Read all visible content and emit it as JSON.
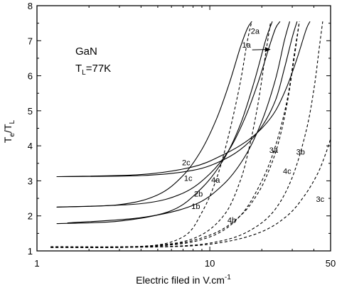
{
  "chart_data": {
    "type": "line",
    "xscale": "log",
    "xlim": [
      1,
      50
    ],
    "ylim": [
      1,
      8
    ],
    "xticks": [
      {
        "v": 1,
        "label": "1"
      },
      {
        "v": 10,
        "label": "10"
      },
      {
        "v": 50,
        "label": "50"
      }
    ],
    "xminor": [
      2,
      3,
      4,
      5,
      6,
      7,
      8,
      9,
      20,
      30,
      40
    ],
    "yticks": [
      1,
      2,
      3,
      4,
      5,
      6,
      7,
      8
    ],
    "xlabel": "Electric filed in V.cm",
    "xlabel_sup": "-1",
    "ylabel": "T",
    "ylabel_sub1": "e",
    "ylabel_mid": "/T",
    "ylabel_sub2": "L",
    "annotation": {
      "line1": "GaN",
      "line2_main": "T",
      "line2_sub": "L",
      "line2_rest": "=77K"
    },
    "series": [
      {
        "label": "1a",
        "style": "solid",
        "x": [
          1.3,
          3,
          6,
          9,
          12,
          15,
          18,
          21,
          23
        ],
        "y": [
          1.78,
          1.85,
          2.15,
          2.8,
          3.6,
          4.6,
          5.8,
          7.0,
          7.55
        ]
      },
      {
        "label": "1b",
        "style": "solid",
        "x": [
          1.5,
          4,
          8,
          12,
          16,
          20,
          24,
          27,
          29
        ],
        "y": [
          1.8,
          1.95,
          2.3,
          2.9,
          3.7,
          4.7,
          5.9,
          7.0,
          7.55
        ]
      },
      {
        "label": "1c",
        "style": "solid",
        "x": [
          1.3,
          4,
          8,
          12,
          16,
          20,
          24,
          27,
          30,
          32
        ],
        "y": [
          3.12,
          3.15,
          3.3,
          3.6,
          4.0,
          4.55,
          5.3,
          6.2,
          7.1,
          7.55
        ]
      },
      {
        "label": "2a",
        "style": "solid",
        "x": [
          1.3,
          3,
          5,
          7,
          9,
          11,
          13,
          15,
          16.5,
          17.5
        ],
        "y": [
          2.25,
          2.32,
          2.6,
          3.15,
          3.9,
          4.8,
          5.8,
          6.8,
          7.35,
          7.55
        ]
      },
      {
        "label": "2b",
        "style": "solid",
        "x": [
          1.3,
          4,
          7,
          10,
          13,
          16,
          19,
          22,
          24,
          25.5
        ],
        "y": [
          2.25,
          2.35,
          2.65,
          3.2,
          3.9,
          4.8,
          5.8,
          6.8,
          7.35,
          7.55
        ]
      },
      {
        "label": "2c",
        "style": "solid",
        "x": [
          1.3,
          4,
          8,
          12,
          16,
          20,
          24,
          28,
          32,
          36,
          38
        ],
        "y": [
          3.12,
          3.18,
          3.4,
          3.75,
          4.1,
          4.5,
          5.0,
          5.7,
          6.5,
          7.3,
          7.55
        ]
      },
      {
        "label": "3a",
        "style": "dashed",
        "x": [
          1.2,
          4,
          8,
          12,
          15,
          17,
          19,
          21,
          22.5
        ],
        "y": [
          1.1,
          1.13,
          1.35,
          2.0,
          3.0,
          4.0,
          5.2,
          6.6,
          7.55
        ]
      },
      {
        "label": "3b",
        "style": "dashed",
        "x": [
          1.2,
          5,
          10,
          15,
          20,
          24,
          28,
          31,
          33
        ],
        "y": [
          1.1,
          1.14,
          1.4,
          2.0,
          3.0,
          4.0,
          5.3,
          6.7,
          7.55
        ]
      },
      {
        "label": "3c",
        "style": "dashed",
        "x": [
          1.2,
          6,
          12,
          20,
          28,
          35,
          42,
          47,
          50
        ],
        "y": [
          1.1,
          1.12,
          1.25,
          1.55,
          2.0,
          2.55,
          3.2,
          3.8,
          4.2
        ]
      },
      {
        "label": "4a",
        "style": "dashed",
        "x": [
          1.2,
          4,
          7,
          9,
          11,
          13,
          15,
          16.5,
          17.5
        ],
        "y": [
          1.1,
          1.12,
          1.4,
          2.1,
          3.1,
          4.4,
          5.8,
          7.0,
          7.55
        ]
      },
      {
        "label": "4b",
        "style": "dashed",
        "x": [
          1.2,
          5,
          10,
          15,
          19,
          22,
          25,
          28,
          31,
          33
        ],
        "y": [
          1.12,
          1.15,
          1.45,
          2.0,
          2.65,
          3.3,
          4.1,
          5.2,
          6.6,
          7.55
        ]
      },
      {
        "label": "4c",
        "style": "dashed",
        "x": [
          1.2,
          6,
          12,
          18,
          24,
          30,
          36,
          40,
          43,
          45
        ],
        "y": [
          1.1,
          1.13,
          1.3,
          1.65,
          2.2,
          3.1,
          4.4,
          5.6,
          6.8,
          7.55
        ]
      }
    ],
    "curve_labels": [
      {
        "text": "2a",
        "x": 18.3,
        "y": 7.2
      },
      {
        "text": "1a",
        "x": 16.3,
        "y": 6.8,
        "arrow_to": {
          "x": 22.5,
          "y": 6.75
        }
      },
      {
        "text": "2c",
        "x": 7.3,
        "y": 3.45
      },
      {
        "text": "1c",
        "x": 7.5,
        "y": 3.0
      },
      {
        "text": "2b",
        "x": 8.6,
        "y": 2.55
      },
      {
        "text": "1b",
        "x": 8.3,
        "y": 2.2
      },
      {
        "text": "4a",
        "x": 10.8,
        "y": 2.95
      },
      {
        "text": "4b",
        "x": 13.4,
        "y": 1.8
      },
      {
        "text": "3a",
        "x": 23.4,
        "y": 3.8
      },
      {
        "text": "4c",
        "x": 28.0,
        "y": 3.2
      },
      {
        "text": "3b",
        "x": 33.5,
        "y": 3.75
      },
      {
        "text": "3c",
        "x": 43.5,
        "y": 2.4
      }
    ]
  }
}
